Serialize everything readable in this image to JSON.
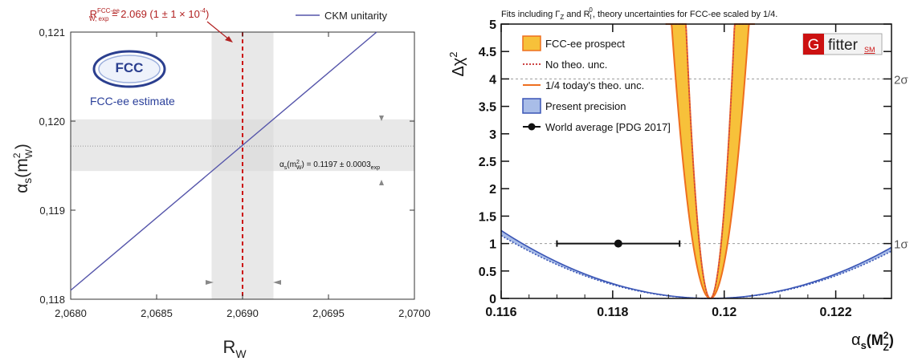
{
  "chart_data": [
    {
      "type": "line",
      "xlabel_main": "R",
      "xlabel_sub": "W",
      "ylabel_alpha": "α",
      "ylabel_sub": "s",
      "ylabel_paren": "(m",
      "ylabel_sup": "2",
      "ylabel_paren_sub": "W",
      "ylabel_close": ")",
      "xlim": [
        2.068,
        2.07
      ],
      "ylim": [
        0.118,
        0.121
      ],
      "x_ticks": [
        2.068,
        2.0685,
        2.069,
        2.0695,
        2.07
      ],
      "x_tick_labels": [
        "2,0680",
        "2,0685",
        "2,0690",
        "2,0695",
        "2,0700"
      ],
      "y_ticks": [
        0.118,
        0.119,
        0.12,
        0.121
      ],
      "y_tick_labels": [
        "0,118",
        "0,119",
        "0,120",
        "0,121"
      ],
      "series": [
        {
          "name": "CKM unitarity",
          "x": [
            2.068,
            2.06978
          ],
          "y": [
            0.1181,
            0.121
          ]
        }
      ],
      "legend_label": "CKM unitarity",
      "logo_text": "FCC",
      "logo_subtext": "FCC-ee estimate",
      "annotation_R": {
        "main": "R",
        "sup": "FCC-ee",
        "sub": "W, exp",
        "rest": " = 2.069 (1 ± 1 × 10",
        "exp": "-4",
        "close": ")"
      },
      "annotation_alpha": {
        "a": "α",
        "s": "s",
        "paren": "(m",
        "sup": "2",
        "sub": "W",
        "rest": ") = 0.1197 ±  0.0003",
        "exp_sub": "exp"
      },
      "R_center": 2.069,
      "R_band": [
        2.06882,
        2.06918
      ],
      "alpha_center": 0.11972,
      "alpha_band": [
        0.11944,
        0.12002
      ],
      "colors": {
        "line": "#5555aa",
        "red": "#cc2222",
        "band": "#d8d8d8",
        "text_blue": "#2a3f9a"
      }
    },
    {
      "type": "line",
      "title": "Fits including Γ",
      "title_z": "Z",
      "title_and": " and R",
      "title_l": "l",
      "title_zero": "0",
      "title_rest": ", theory uncertainties for FCC-ee scaled by 1/4.",
      "ylabel": "Δχ",
      "ylabel_sup": "2",
      "xlabel_alpha": "α",
      "xlabel_s": "s",
      "xlabel_rest": "(M",
      "xlabel_sup": "2",
      "xlabel_sub": "Z",
      "xlabel_close": ")",
      "xlim": [
        0.116,
        0.123
      ],
      "ylim": [
        0,
        5
      ],
      "x_ticks": [
        0.116,
        0.118,
        0.12,
        0.122
      ],
      "x_tick_labels": [
        "0.116",
        "0.118",
        "0.12",
        "0.122"
      ],
      "y_ticks": [
        0,
        0.5,
        1,
        1.5,
        2,
        2.5,
        3,
        3.5,
        4,
        4.5,
        5
      ],
      "y_tick_labels": [
        "0",
        "0.5",
        "1",
        "1.5",
        "2",
        "2.5",
        "3",
        "3.5",
        "4",
        "4.5",
        "5"
      ],
      "sigma_lines": [
        {
          "y": 1,
          "label": "1σ"
        },
        {
          "y": 4,
          "label": "2σ"
        }
      ],
      "fcc_center": 0.11975,
      "fcc_width_outer": 0.00031,
      "fcc_width_inner": 0.000195,
      "present_center": 0.11975,
      "present_width_outer": 0.00337,
      "present_width_inner": 0.0035,
      "world_average": {
        "x": 0.1181,
        "xmin": 0.117,
        "xmax": 0.1192,
        "y": 1
      },
      "legend": [
        {
          "label": "FCC-ee prospect",
          "kind": "fcc_band"
        },
        {
          "label": "No theo. unc.",
          "kind": "dotted"
        },
        {
          "label": "1/4 today's theo. unc.",
          "kind": "orange_line"
        },
        {
          "label": "Present precision",
          "kind": "blue_band"
        },
        {
          "label": "World average [PDG 2017]",
          "kind": "point"
        }
      ],
      "gfitter": {
        "g": "G",
        "text": "fitter",
        "sm": "SM"
      },
      "colors": {
        "fcc_fill": "#f7c13a",
        "fcc_line": "#ee6f1f",
        "dotted": "#cc4444",
        "blue_fill": "#a9bde8",
        "blue_line": "#3a55b5",
        "sigma_line": "#999999"
      }
    }
  ]
}
